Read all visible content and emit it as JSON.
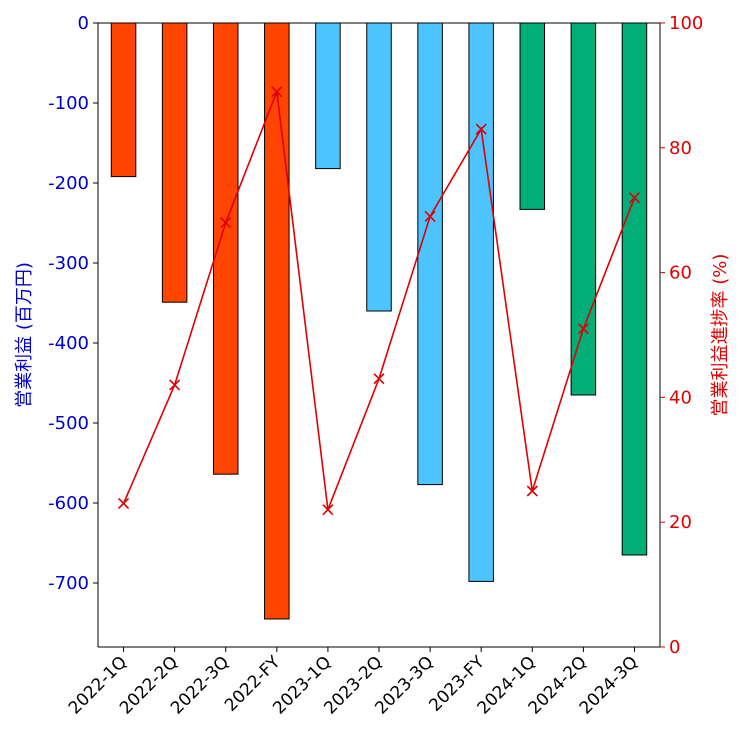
{
  "chart_data": {
    "type": "bar",
    "categories": [
      "2022-1Q",
      "2022-2Q",
      "2022-3Q",
      "2022-FY",
      "2023-1Q",
      "2023-2Q",
      "2023-3Q",
      "2023-FY",
      "2024-1Q",
      "2024-2Q",
      "2024-3Q"
    ],
    "series": [
      {
        "axis": "left",
        "type": "bar",
        "values": [
          -192,
          -349,
          -564,
          -745,
          -182,
          -360,
          -577,
          -698,
          -233,
          -465,
          -665
        ],
        "colors": [
          "#ff4500",
          "#ff4500",
          "#ff4500",
          "#ff4500",
          "#4dc3ff",
          "#4dc3ff",
          "#4dc3ff",
          "#4dc3ff",
          "#00ae78",
          "#00ae78",
          "#00ae78"
        ]
      },
      {
        "axis": "right",
        "type": "line",
        "marker": "x",
        "color": "#e00000",
        "values": [
          23,
          42,
          68,
          89,
          22,
          43,
          69,
          83,
          25,
          51,
          72
        ]
      }
    ],
    "ylabel_left": "営業利益 (百万円)",
    "ylabel_right": "営業利益進捗率 (%)",
    "ylim_left": [
      -780,
      0
    ],
    "yticks_left": [
      "0",
      "-100",
      "-200",
      "-300",
      "-400",
      "-500",
      "-600",
      "-700"
    ],
    "ylim_right": [
      0,
      100
    ],
    "yticks_right": [
      "0",
      "20",
      "40",
      "60",
      "80",
      "100"
    ],
    "left_axis_color": "#0000cc",
    "right_axis_color": "#e00000",
    "grid": false
  }
}
